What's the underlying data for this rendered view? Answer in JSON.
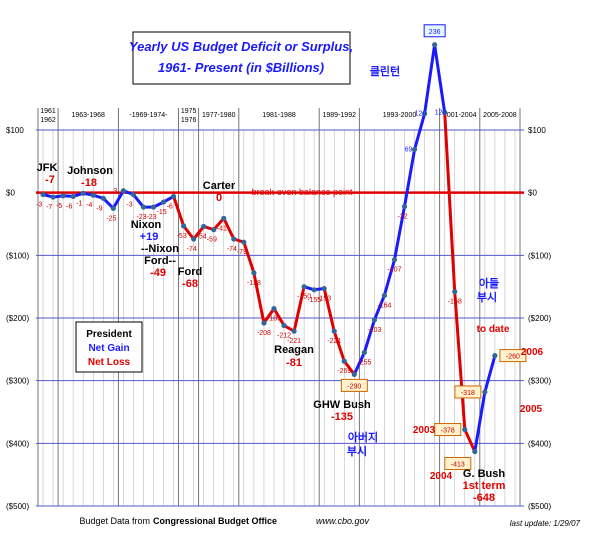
{
  "chart_data": {
    "type": "line",
    "title_line1": "Yearly US Budget Deficit or Surplus,",
    "title_line2": "1961- Present  (in $Billions)",
    "y_ticks": [
      "$100",
      "$0",
      "($100)",
      "($200)",
      "($300)",
      "($400)",
      "($500)"
    ],
    "y_tick_values": [
      100,
      0,
      -100,
      -200,
      -300,
      -400,
      -500
    ],
    "ylim": [
      -500,
      100
    ],
    "xlim": [
      1961,
      2008
    ],
    "baseline_label": "break-even balance point",
    "grid": true,
    "colors": {
      "gain": "#1a1aff",
      "loss": "#e00000",
      "title": "#1a1aff",
      "gridline": "#5555cc"
    },
    "periods": [
      {
        "label": "1961\n1962",
        "start": 1961,
        "end": 1962
      },
      {
        "label": "1963-1968",
        "start": 1963,
        "end": 1968
      },
      {
        "label": "-1969-1974-",
        "start": 1969,
        "end": 1974
      },
      {
        "label": "1975\n1976",
        "start": 1975,
        "end": 1976
      },
      {
        "label": "1977-1980",
        "start": 1977,
        "end": 1980
      },
      {
        "label": "1981-1988",
        "start": 1981,
        "end": 1988
      },
      {
        "label": "1989-1992",
        "start": 1989,
        "end": 1992
      },
      {
        "label": "1993-2000",
        "start": 1993,
        "end": 2000
      },
      {
        "label": "2001-2004",
        "start": 2001,
        "end": 2004
      },
      {
        "label": "2005-2008",
        "start": 2005,
        "end": 2008
      }
    ],
    "points": [
      {
        "x": 1961,
        "y": -3,
        "label": "-3"
      },
      {
        "x": 1962,
        "y": -7,
        "label": "-7"
      },
      {
        "x": 1963,
        "y": -5,
        "label": "-5"
      },
      {
        "x": 1964,
        "y": -6,
        "label": "-6"
      },
      {
        "x": 1965,
        "y": -1,
        "label": "-1"
      },
      {
        "x": 1966,
        "y": -4,
        "label": "-4"
      },
      {
        "x": 1967,
        "y": -9,
        "label": "-9"
      },
      {
        "x": 1968,
        "y": -25,
        "label": "-25"
      },
      {
        "x": 1969,
        "y": 3,
        "label": "3"
      },
      {
        "x": 1970,
        "y": -3,
        "label": "-3"
      },
      {
        "x": 1971,
        "y": -23,
        "label": "-23"
      },
      {
        "x": 1972,
        "y": -23,
        "label": "-23"
      },
      {
        "x": 1973,
        "y": -15,
        "label": "-15"
      },
      {
        "x": 1974,
        "y": -6,
        "label": "-6"
      },
      {
        "x": 1975,
        "y": -53,
        "label": "-53"
      },
      {
        "x": 1976,
        "y": -74,
        "label": "-74"
      },
      {
        "x": 1977,
        "y": -54,
        "label": "-54"
      },
      {
        "x": 1978,
        "y": -59,
        "label": "-59"
      },
      {
        "x": 1979,
        "y": -41,
        "label": "-41"
      },
      {
        "x": 1980,
        "y": -74,
        "label": "-74"
      },
      {
        "x": 1981,
        "y": -79,
        "label": "-79"
      },
      {
        "x": 1982,
        "y": -128,
        "label": "-128"
      },
      {
        "x": 1983,
        "y": -208,
        "label": "-208"
      },
      {
        "x": 1984,
        "y": -185,
        "label": "-185"
      },
      {
        "x": 1985,
        "y": -212,
        "label": "-212"
      },
      {
        "x": 1986,
        "y": -221,
        "label": "-221"
      },
      {
        "x": 1987,
        "y": -150,
        "label": "-150"
      },
      {
        "x": 1988,
        "y": -155,
        "label": "-155"
      },
      {
        "x": 1989,
        "y": -153,
        "label": "-153"
      },
      {
        "x": 1990,
        "y": -221,
        "label": "-221"
      },
      {
        "x": 1991,
        "y": -269,
        "label": "-269"
      },
      {
        "x": 1992,
        "y": -290,
        "label": "-290"
      },
      {
        "x": 1993,
        "y": -255,
        "label": "-255"
      },
      {
        "x": 1994,
        "y": -203,
        "label": "-203"
      },
      {
        "x": 1995,
        "y": -164,
        "label": "-164"
      },
      {
        "x": 1996,
        "y": -107,
        "label": "-107"
      },
      {
        "x": 1997,
        "y": -22,
        "label": "-22"
      },
      {
        "x": 1998,
        "y": 69,
        "label": "69"
      },
      {
        "x": 1999,
        "y": 126,
        "label": "126"
      },
      {
        "x": 2000,
        "y": 236,
        "label": "236"
      },
      {
        "x": 2001,
        "y": 128,
        "label": "128"
      },
      {
        "x": 2002,
        "y": -158,
        "label": "-158"
      },
      {
        "x": 2003,
        "y": -378,
        "label": "-378"
      },
      {
        "x": 2004,
        "y": -413,
        "label": "-413"
      },
      {
        "x": 2005,
        "y": -318,
        "label": "-318"
      },
      {
        "x": 2006,
        "y": -260,
        "label": "-260"
      }
    ],
    "segments": [
      {
        "from": 1961,
        "to": 1969,
        "color": "gain"
      },
      {
        "from": 1969,
        "to": 1974,
        "color": "gain"
      },
      {
        "from": 1974,
        "to": 1981,
        "color": "loss"
      },
      {
        "from": 1981,
        "to": 1984,
        "color": "loss"
      },
      {
        "from": 1984,
        "to": 1987,
        "color": "loss"
      },
      {
        "from": 1987,
        "to": 1989,
        "color": "gain"
      },
      {
        "from": 1989,
        "to": 1992,
        "color": "loss"
      },
      {
        "from": 1992,
        "to": 2000,
        "color": "gain"
      },
      {
        "from": 2000,
        "to": 2001,
        "color": "gain"
      },
      {
        "from": 2001,
        "to": 2004,
        "color": "loss"
      },
      {
        "from": 2004,
        "to": 2006,
        "color": "gain"
      }
    ],
    "boxed_labels": [
      "236",
      "-290",
      "-378",
      "-413",
      "-318",
      "-260"
    ]
  },
  "presidents": [
    {
      "name": "JFK",
      "value": "-7",
      "value_color": "loss"
    },
    {
      "name": "Johnson",
      "value": "-18",
      "value_color": "loss"
    },
    {
      "name": "Nixon",
      "value": "+19",
      "value_color": "gain"
    },
    {
      "name": "--Nixon",
      "value": "",
      "value_color": "loss"
    },
    {
      "name": "Ford--",
      "value": "-49",
      "value_color": "loss"
    },
    {
      "name": "Ford",
      "value": "-68",
      "value_color": "loss"
    },
    {
      "name": "Carter",
      "value": "0",
      "value_color": "loss"
    },
    {
      "name": "Reagan",
      "value": "-81",
      "value_color": "loss"
    },
    {
      "name": "GHW Bush",
      "value": "-135",
      "value_color": "loss"
    },
    {
      "name": "G. Bush",
      "value": "1st term",
      "value_color": "loss"
    },
    {
      "name": "",
      "value": "-648",
      "value_color": "loss"
    }
  ],
  "annotations": {
    "clinton_kr": "클린턴",
    "father_kr_1": "아버지",
    "father_kr_2": "부시",
    "son_kr_1": "아들",
    "son_kr_2": "부시",
    "to_date": "to date",
    "year_2003": "2003",
    "year_2004": "2004",
    "year_2005": "2005",
    "year_2006": "2006"
  },
  "legend": {
    "title": "President",
    "gain": "Net Gain",
    "loss": "Net Loss"
  },
  "footer": {
    "prefix": "Budget Data from",
    "source": "Congressional Budget Office",
    "url": "www.cbo.gov",
    "update": "last update: 1/29/07"
  }
}
